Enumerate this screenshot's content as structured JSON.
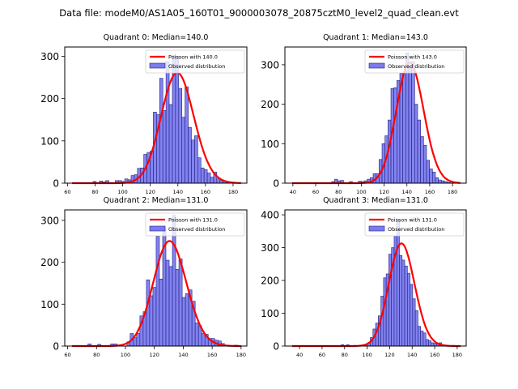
{
  "suptitle": "Data file: modeM0/AS1A05_160T01_9000003078_20875cztM0_level2_quad_clean.evt",
  "colors": {
    "bar_fill": "#7b7bf0",
    "bar_edge": "#20207a",
    "poisson_line": "#ff0000"
  },
  "chart_data": [
    {
      "type": "bar",
      "title": "Quadrant 0: Median=140.0",
      "xlim": [
        58,
        190
      ],
      "ylim": [
        0,
        322
      ],
      "xticks": [
        60,
        80,
        100,
        120,
        140,
        160,
        180
      ],
      "yticks": [
        0,
        100,
        200,
        300
      ],
      "legend": [
        "Poisson with 140.0",
        "Observed distribution"
      ],
      "legend_position": "top-right",
      "median": 140.0,
      "bin_width": 2.3,
      "bins_start": [
        78.5,
        80.8,
        83.1,
        85.4,
        87.7,
        90.0,
        92.3,
        94.6,
        96.9,
        99.2,
        101.5,
        103.8,
        106.1,
        108.4,
        110.7,
        113.0,
        115.3,
        117.6,
        119.9,
        122.2,
        124.5,
        126.8,
        129.1,
        131.4,
        133.7,
        136.0,
        138.3,
        140.6,
        142.9,
        145.2,
        147.5,
        149.8,
        152.1,
        154.4,
        156.7,
        159.0,
        161.3,
        163.6,
        165.9,
        168.2,
        170.5,
        172.8,
        175.1
      ],
      "values": [
        4,
        0,
        5,
        3,
        6,
        0,
        0,
        6,
        6,
        4,
        10,
        8,
        18,
        20,
        35,
        36,
        68,
        72,
        76,
        168,
        162,
        248,
        172,
        288,
        186,
        302,
        300,
        224,
        156,
        228,
        132,
        102,
        112,
        60,
        36,
        32,
        24,
        14,
        26,
        10,
        6,
        4,
        2
      ]
    },
    {
      "type": "bar",
      "title": "Quadrant 1: Median=143.0",
      "xlim": [
        33,
        192
      ],
      "ylim": [
        0,
        345
      ],
      "xticks": [
        40,
        60,
        80,
        100,
        120,
        140,
        160,
        180
      ],
      "yticks": [
        0,
        100,
        200,
        300
      ],
      "legend": [
        "Poisson with 143.0",
        "Observed distribution"
      ],
      "legend_position": "top-right",
      "median": 143.0,
      "bin_width": 2.6,
      "bins_start": [
        74.0,
        76.6,
        79.2,
        81.8,
        84.4,
        87.0,
        89.6,
        92.2,
        94.8,
        97.4,
        100.0,
        102.6,
        105.2,
        107.8,
        110.4,
        113.0,
        115.6,
        118.2,
        120.8,
        123.4,
        126.0,
        128.6,
        131.2,
        133.8,
        136.4,
        139.0,
        141.6,
        144.2,
        146.8,
        149.4,
        152.0,
        154.6,
        157.2,
        159.8,
        162.4,
        165.0,
        167.6,
        170.2,
        172.8,
        175.4
      ],
      "values": [
        4,
        10,
        6,
        7,
        0,
        0,
        4,
        0,
        0,
        5,
        4,
        6,
        10,
        14,
        24,
        24,
        60,
        100,
        120,
        160,
        240,
        242,
        260,
        278,
        280,
        330,
        296,
        308,
        200,
        160,
        118,
        96,
        58,
        36,
        28,
        14,
        8,
        6,
        4,
        2
      ]
    },
    {
      "type": "bar",
      "title": "Quadrant 2: Median=131.0",
      "xlim": [
        58,
        184
      ],
      "ylim": [
        0,
        325
      ],
      "xticks": [
        60,
        80,
        100,
        120,
        140,
        160,
        180
      ],
      "yticks": [
        0,
        100,
        200,
        300
      ],
      "legend": [
        "Poisson with 131.0",
        "Observed distribution"
      ],
      "legend_position": "top-right",
      "median": 131.0,
      "bin_width": 2.25,
      "bins_start": [
        74.0,
        76.25,
        78.5,
        80.75,
        83.0,
        85.25,
        87.5,
        89.75,
        92.0,
        94.25,
        96.5,
        98.75,
        101.0,
        103.25,
        105.5,
        107.75,
        110.0,
        112.25,
        114.5,
        116.75,
        119.0,
        121.25,
        123.5,
        125.75,
        128.0,
        130.25,
        132.5,
        134.75,
        137.0,
        139.25,
        141.5,
        143.75,
        146.0,
        148.25,
        150.5,
        152.75,
        155.0,
        157.25,
        159.5,
        161.75,
        164.0,
        166.25,
        168.5,
        170.75,
        173.0,
        175.25
      ],
      "values": [
        5,
        0,
        0,
        4,
        0,
        0,
        0,
        5,
        5,
        0,
        0,
        0,
        10,
        30,
        20,
        30,
        72,
        82,
        158,
        120,
        140,
        262,
        160,
        282,
        205,
        190,
        312,
        183,
        208,
        116,
        125,
        134,
        107,
        55,
        48,
        30,
        28,
        18,
        18,
        14,
        12,
        6,
        0,
        0,
        0,
        2
      ]
    },
    {
      "type": "bar",
      "title": "Quadrant 3: Median=131.0",
      "xlim": [
        27,
        188
      ],
      "ylim": [
        0,
        415
      ],
      "xticks": [
        40,
        60,
        80,
        100,
        120,
        140,
        160,
        180
      ],
      "yticks": [
        0,
        100,
        200,
        300,
        400
      ],
      "legend": [
        "Poisson with 131.0",
        "Observed distribution"
      ],
      "legend_position": "top-right",
      "median": 131.0,
      "bin_width": 2.35,
      "bins_start": [
        77.0,
        79.35,
        81.7,
        84.05,
        86.4,
        88.75,
        91.1,
        93.45,
        95.8,
        98.15,
        100.5,
        102.85,
        105.2,
        107.55,
        109.9,
        112.25,
        114.6,
        116.95,
        119.3,
        121.65,
        124.0,
        126.35,
        128.7,
        131.05,
        133.4,
        135.75,
        138.1,
        140.45,
        142.8,
        145.15,
        147.5,
        149.85,
        152.2,
        154.55,
        156.9,
        159.25,
        161.6,
        163.95,
        166.3,
        168.65,
        171.0,
        173.35
      ],
      "values": [
        4,
        0,
        4,
        0,
        0,
        0,
        0,
        2,
        4,
        6,
        10,
        26,
        52,
        70,
        92,
        152,
        208,
        220,
        280,
        300,
        336,
        384,
        276,
        262,
        244,
        222,
        188,
        144,
        108,
        60,
        46,
        40,
        20,
        16,
        10,
        8,
        6,
        10,
        4,
        3,
        2,
        0
      ]
    }
  ]
}
